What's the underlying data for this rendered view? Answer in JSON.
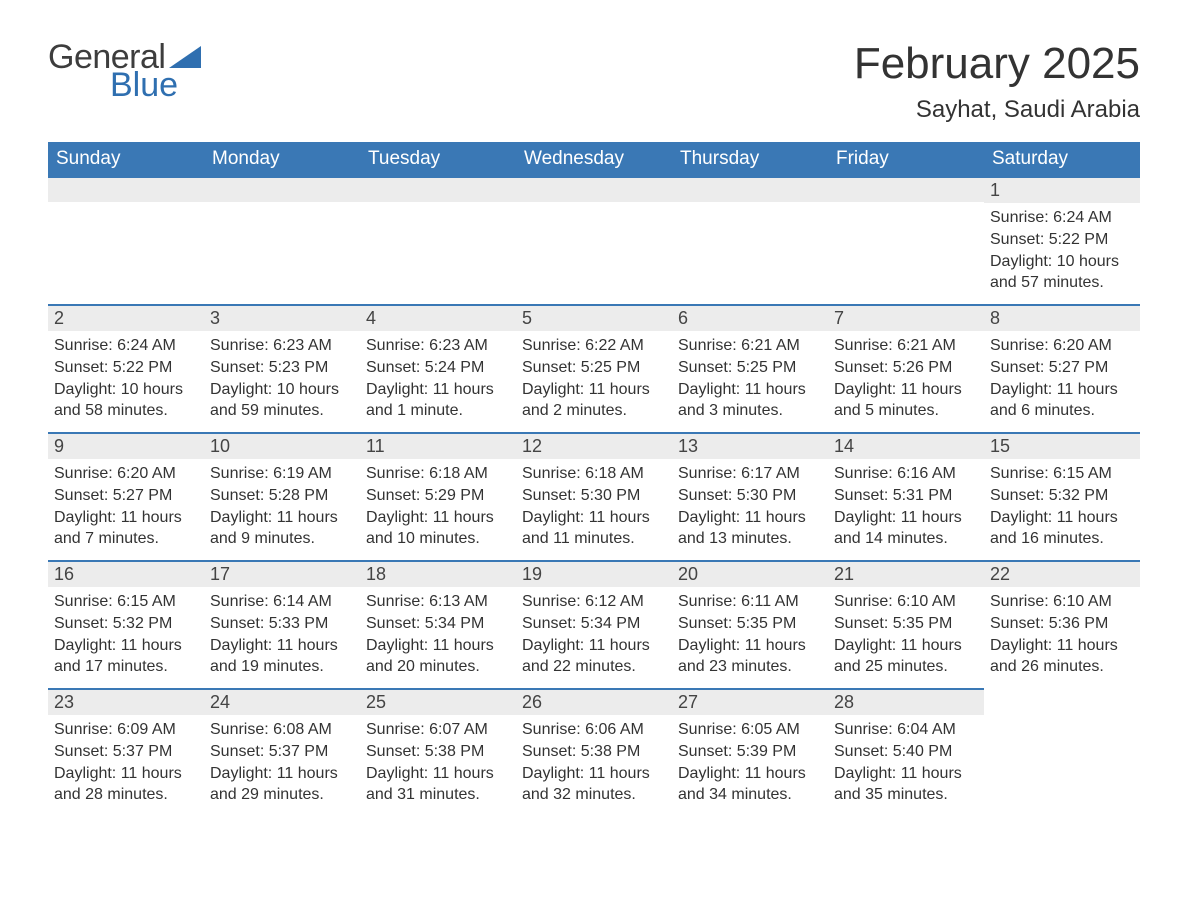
{
  "logo": {
    "text1": "General",
    "text2": "Blue",
    "flag_color": "#2f6fb0"
  },
  "title": "February 2025",
  "location": "Sayhat, Saudi Arabia",
  "colors": {
    "header_bg": "#3a78b5",
    "header_text": "#ffffff",
    "daybar_bg": "#ececec",
    "daybar_border": "#3a78b5",
    "body_text": "#333333"
  },
  "day_labels": [
    "Sunday",
    "Monday",
    "Tuesday",
    "Wednesday",
    "Thursday",
    "Friday",
    "Saturday"
  ],
  "weeks": [
    [
      null,
      null,
      null,
      null,
      null,
      null,
      {
        "n": "1",
        "sunrise": "Sunrise: 6:24 AM",
        "sunset": "Sunset: 5:22 PM",
        "daylight": "Daylight: 10 hours and 57 minutes."
      }
    ],
    [
      {
        "n": "2",
        "sunrise": "Sunrise: 6:24 AM",
        "sunset": "Sunset: 5:22 PM",
        "daylight": "Daylight: 10 hours and 58 minutes."
      },
      {
        "n": "3",
        "sunrise": "Sunrise: 6:23 AM",
        "sunset": "Sunset: 5:23 PM",
        "daylight": "Daylight: 10 hours and 59 minutes."
      },
      {
        "n": "4",
        "sunrise": "Sunrise: 6:23 AM",
        "sunset": "Sunset: 5:24 PM",
        "daylight": "Daylight: 11 hours and 1 minute."
      },
      {
        "n": "5",
        "sunrise": "Sunrise: 6:22 AM",
        "sunset": "Sunset: 5:25 PM",
        "daylight": "Daylight: 11 hours and 2 minutes."
      },
      {
        "n": "6",
        "sunrise": "Sunrise: 6:21 AM",
        "sunset": "Sunset: 5:25 PM",
        "daylight": "Daylight: 11 hours and 3 minutes."
      },
      {
        "n": "7",
        "sunrise": "Sunrise: 6:21 AM",
        "sunset": "Sunset: 5:26 PM",
        "daylight": "Daylight: 11 hours and 5 minutes."
      },
      {
        "n": "8",
        "sunrise": "Sunrise: 6:20 AM",
        "sunset": "Sunset: 5:27 PM",
        "daylight": "Daylight: 11 hours and 6 minutes."
      }
    ],
    [
      {
        "n": "9",
        "sunrise": "Sunrise: 6:20 AM",
        "sunset": "Sunset: 5:27 PM",
        "daylight": "Daylight: 11 hours and 7 minutes."
      },
      {
        "n": "10",
        "sunrise": "Sunrise: 6:19 AM",
        "sunset": "Sunset: 5:28 PM",
        "daylight": "Daylight: 11 hours and 9 minutes."
      },
      {
        "n": "11",
        "sunrise": "Sunrise: 6:18 AM",
        "sunset": "Sunset: 5:29 PM",
        "daylight": "Daylight: 11 hours and 10 minutes."
      },
      {
        "n": "12",
        "sunrise": "Sunrise: 6:18 AM",
        "sunset": "Sunset: 5:30 PM",
        "daylight": "Daylight: 11 hours and 11 minutes."
      },
      {
        "n": "13",
        "sunrise": "Sunrise: 6:17 AM",
        "sunset": "Sunset: 5:30 PM",
        "daylight": "Daylight: 11 hours and 13 minutes."
      },
      {
        "n": "14",
        "sunrise": "Sunrise: 6:16 AM",
        "sunset": "Sunset: 5:31 PM",
        "daylight": "Daylight: 11 hours and 14 minutes."
      },
      {
        "n": "15",
        "sunrise": "Sunrise: 6:15 AM",
        "sunset": "Sunset: 5:32 PM",
        "daylight": "Daylight: 11 hours and 16 minutes."
      }
    ],
    [
      {
        "n": "16",
        "sunrise": "Sunrise: 6:15 AM",
        "sunset": "Sunset: 5:32 PM",
        "daylight": "Daylight: 11 hours and 17 minutes."
      },
      {
        "n": "17",
        "sunrise": "Sunrise: 6:14 AM",
        "sunset": "Sunset: 5:33 PM",
        "daylight": "Daylight: 11 hours and 19 minutes."
      },
      {
        "n": "18",
        "sunrise": "Sunrise: 6:13 AM",
        "sunset": "Sunset: 5:34 PM",
        "daylight": "Daylight: 11 hours and 20 minutes."
      },
      {
        "n": "19",
        "sunrise": "Sunrise: 6:12 AM",
        "sunset": "Sunset: 5:34 PM",
        "daylight": "Daylight: 11 hours and 22 minutes."
      },
      {
        "n": "20",
        "sunrise": "Sunrise: 6:11 AM",
        "sunset": "Sunset: 5:35 PM",
        "daylight": "Daylight: 11 hours and 23 minutes."
      },
      {
        "n": "21",
        "sunrise": "Sunrise: 6:10 AM",
        "sunset": "Sunset: 5:35 PM",
        "daylight": "Daylight: 11 hours and 25 minutes."
      },
      {
        "n": "22",
        "sunrise": "Sunrise: 6:10 AM",
        "sunset": "Sunset: 5:36 PM",
        "daylight": "Daylight: 11 hours and 26 minutes."
      }
    ],
    [
      {
        "n": "23",
        "sunrise": "Sunrise: 6:09 AM",
        "sunset": "Sunset: 5:37 PM",
        "daylight": "Daylight: 11 hours and 28 minutes."
      },
      {
        "n": "24",
        "sunrise": "Sunrise: 6:08 AM",
        "sunset": "Sunset: 5:37 PM",
        "daylight": "Daylight: 11 hours and 29 minutes."
      },
      {
        "n": "25",
        "sunrise": "Sunrise: 6:07 AM",
        "sunset": "Sunset: 5:38 PM",
        "daylight": "Daylight: 11 hours and 31 minutes."
      },
      {
        "n": "26",
        "sunrise": "Sunrise: 6:06 AM",
        "sunset": "Sunset: 5:38 PM",
        "daylight": "Daylight: 11 hours and 32 minutes."
      },
      {
        "n": "27",
        "sunrise": "Sunrise: 6:05 AM",
        "sunset": "Sunset: 5:39 PM",
        "daylight": "Daylight: 11 hours and 34 minutes."
      },
      {
        "n": "28",
        "sunrise": "Sunrise: 6:04 AM",
        "sunset": "Sunset: 5:40 PM",
        "daylight": "Daylight: 11 hours and 35 minutes."
      },
      null
    ]
  ]
}
